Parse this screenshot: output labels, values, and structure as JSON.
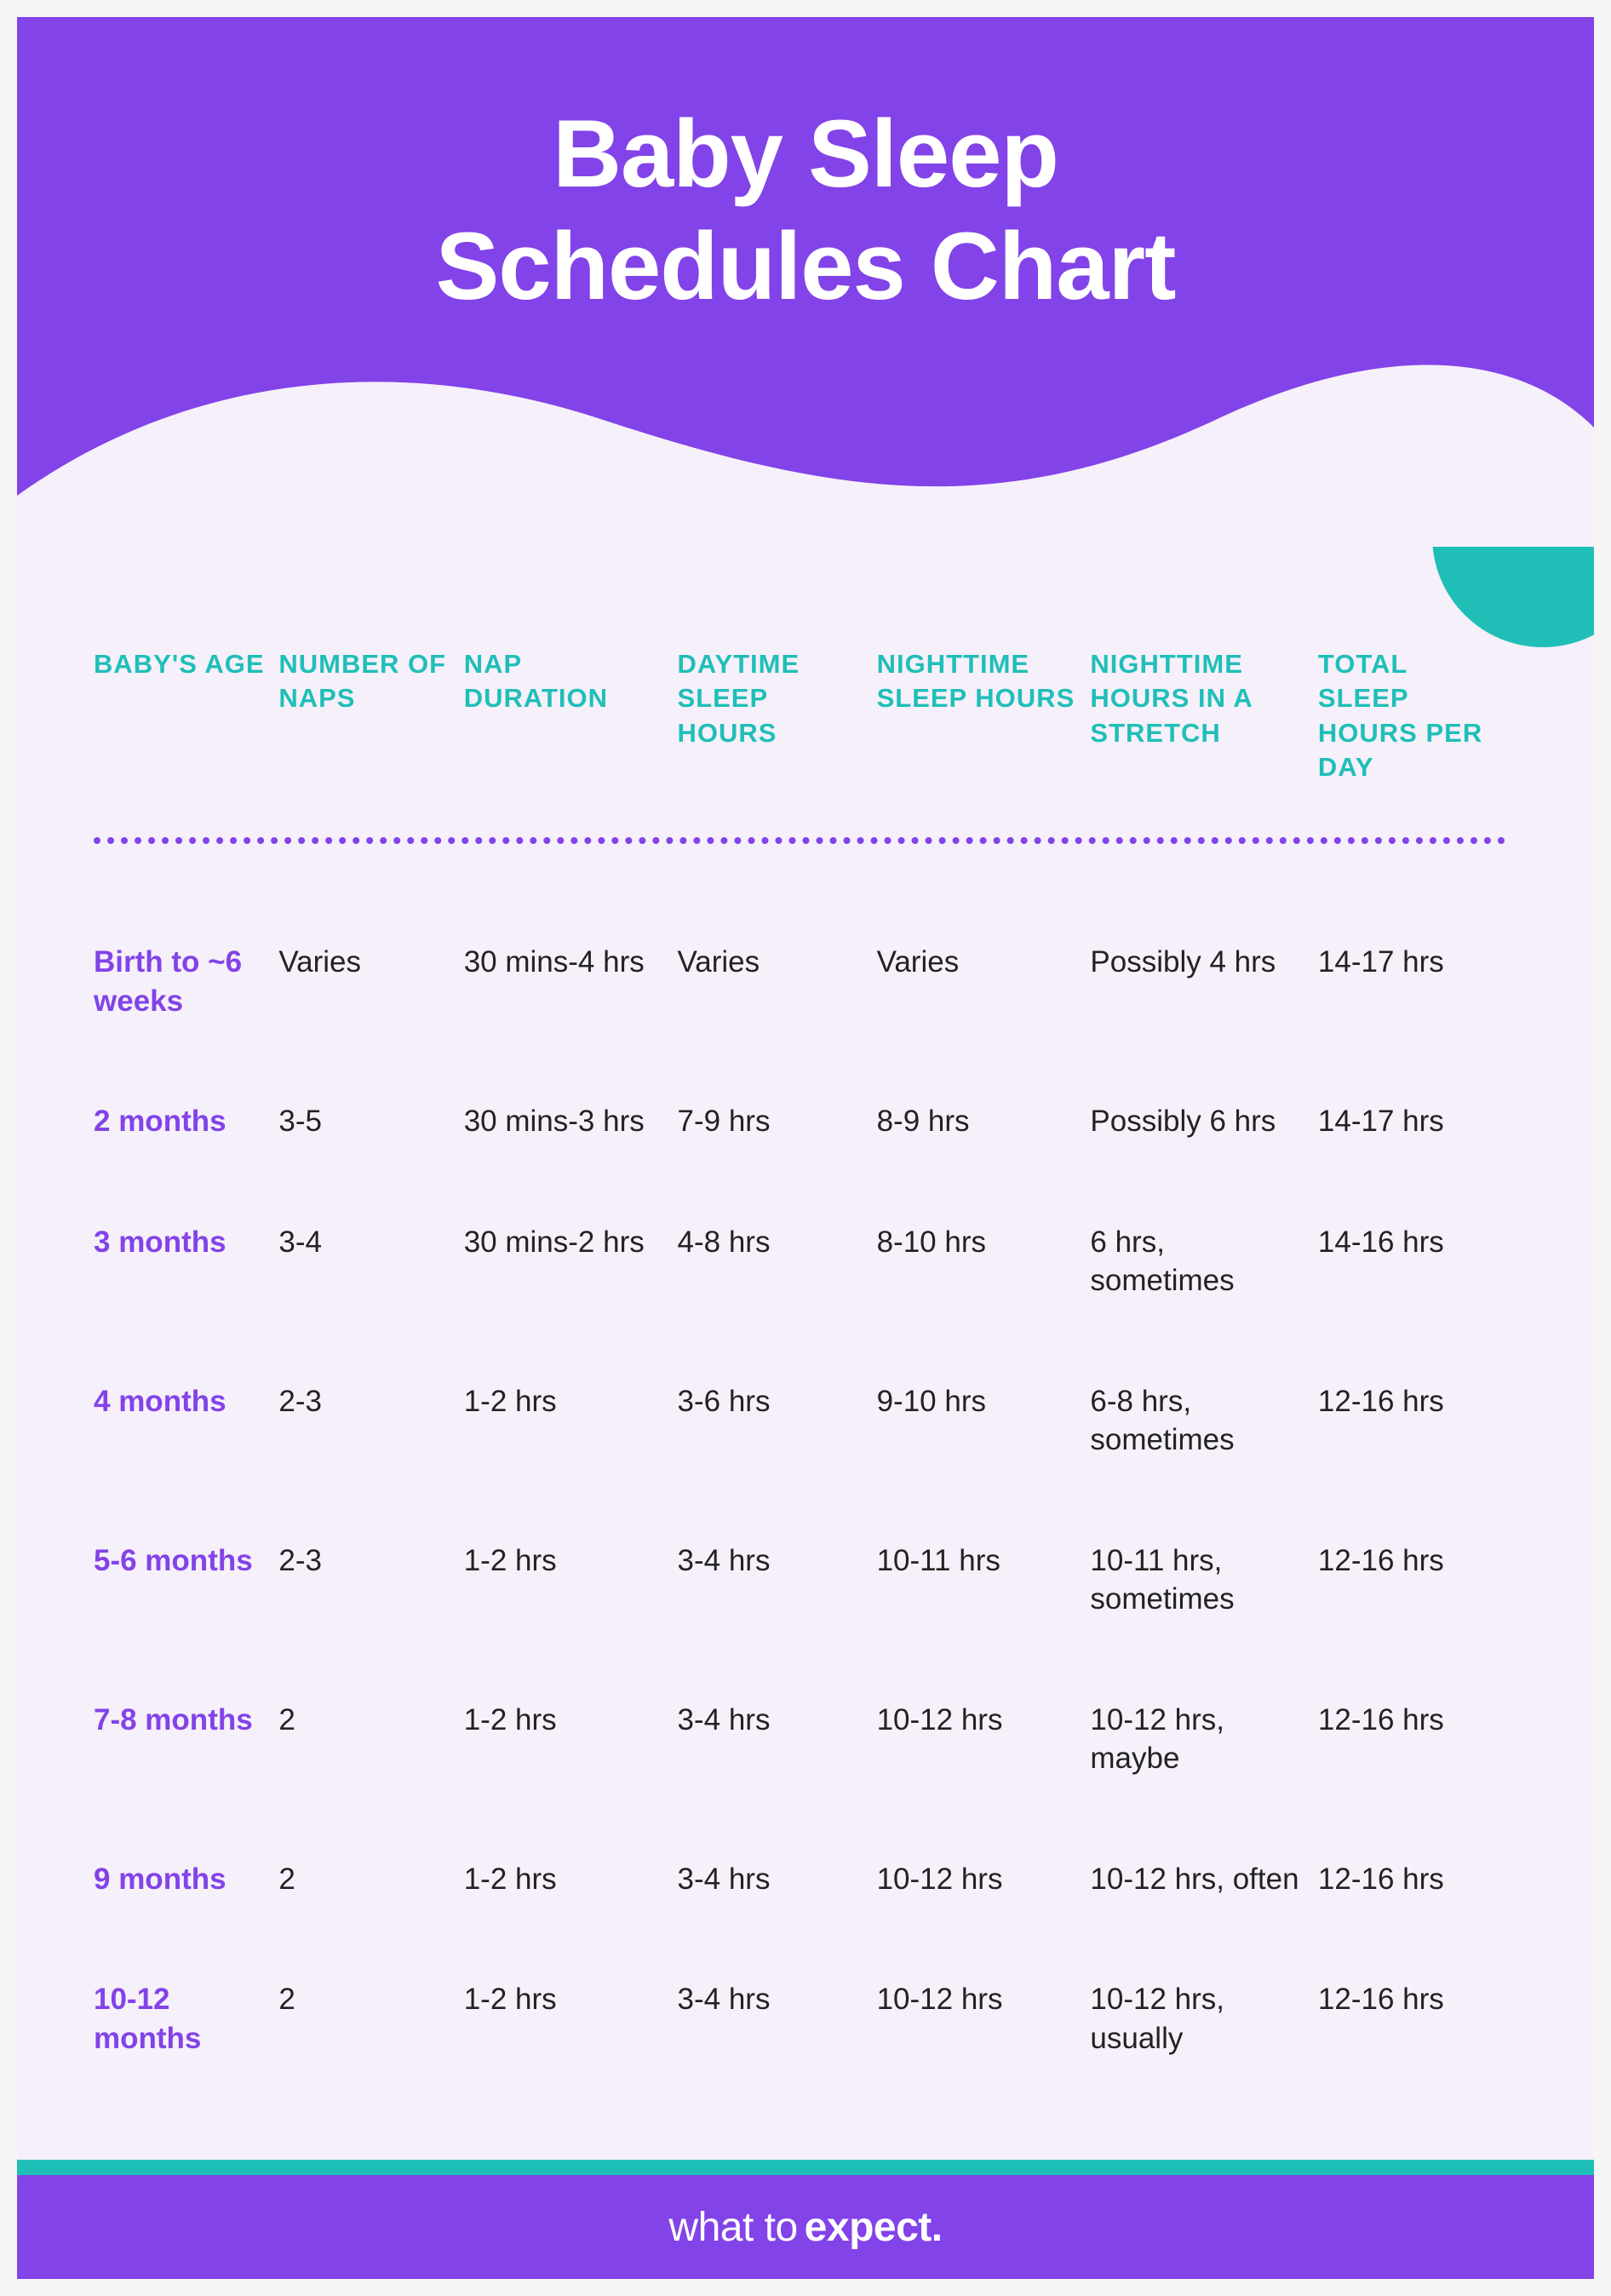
{
  "title_line1": "Baby Sleep",
  "title_line2": "Schedules Chart",
  "brand_prefix": "what to ",
  "brand_bold": "expect.",
  "colors": {
    "header_bg": "#8243e8",
    "body_bg": "#f6f0fa",
    "teal": "#1fbfb8",
    "text": "#222222",
    "age_text": "#8243e8",
    "header_text": "#ffffff"
  },
  "table": {
    "column_widths_pct": [
      13,
      13,
      15,
      14,
      15,
      16,
      14
    ],
    "columns": [
      "BABY'S AGE",
      "NUMBER OF NAPS",
      "NAP DURATION",
      "DAYTIME SLEEP HOURS",
      "NIGHTTIME SLEEP HOURS",
      "NIGHTTIME HOURS IN A STRETCH",
      "TOTAL SLEEP HOURS PER DAY"
    ],
    "rows": [
      [
        "Birth to ~6 weeks",
        "Varies",
        "30 mins-4 hrs",
        "Varies",
        "Varies",
        "Possibly 4 hrs",
        "14-17 hrs"
      ],
      [
        "2 months",
        "3-5",
        "30 mins-3 hrs",
        "7-9 hrs",
        "8-9 hrs",
        "Possibly 6 hrs",
        "14-17 hrs"
      ],
      [
        "3 months",
        "3-4",
        "30 mins-2 hrs",
        "4-8 hrs",
        "8-10 hrs",
        "6 hrs, sometimes",
        "14-16 hrs"
      ],
      [
        "4 months",
        "2-3",
        "1-2 hrs",
        "3-6 hrs",
        "9-10 hrs",
        "6-8 hrs, sometimes",
        "12-16 hrs"
      ],
      [
        "5-6 months",
        "2-3",
        "1-2 hrs",
        "3-4 hrs",
        "10-11 hrs",
        "10-11 hrs, sometimes",
        "12-16 hrs"
      ],
      [
        "7-8 months",
        "2",
        "1-2 hrs",
        "3-4 hrs",
        "10-12 hrs",
        "10-12 hrs, maybe",
        "12-16 hrs"
      ],
      [
        "9 months",
        "2",
        "1-2 hrs",
        "3-4 hrs",
        "10-12 hrs",
        "10-12 hrs, often",
        "12-16 hrs"
      ],
      [
        "10-12 months",
        "2",
        "1-2 hrs",
        "3-4 hrs",
        "10-12 hrs",
        "10-12 hrs, usually",
        "12-16 hrs"
      ]
    ]
  }
}
